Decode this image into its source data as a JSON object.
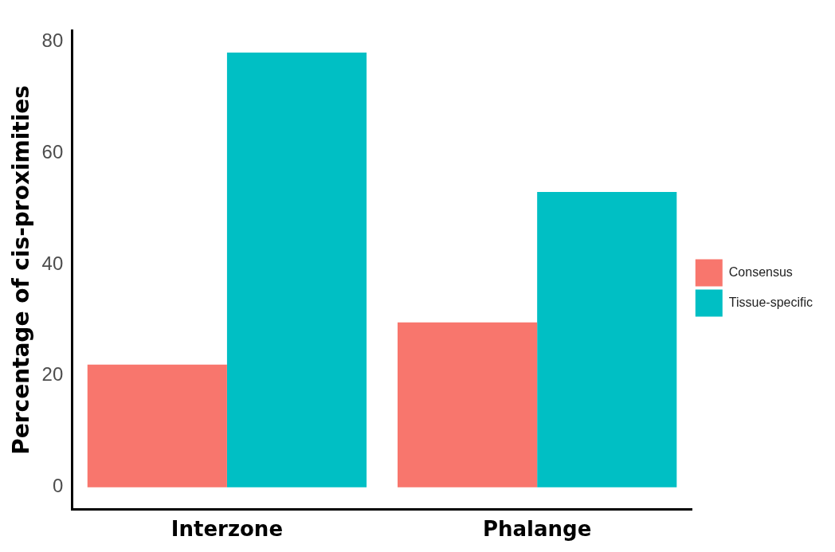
{
  "chart_data": {
    "type": "bar",
    "ylabel": "Percentage of cis-proximities",
    "categories": [
      "Interzone",
      "Phalange"
    ],
    "series": [
      {
        "name": "Consensus",
        "color": "#f8766d",
        "values": [
          22,
          29.6
        ]
      },
      {
        "name": "Tissue-specific",
        "color": "#00bfc4",
        "values": [
          78,
          53
        ]
      }
    ],
    "ylim": [
      -4,
      82
    ],
    "yticks": [
      0,
      20,
      40,
      60,
      80
    ],
    "grid": false,
    "legend": "right"
  }
}
